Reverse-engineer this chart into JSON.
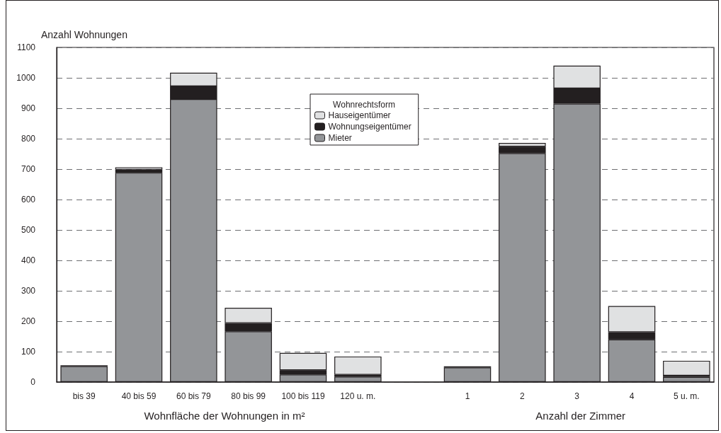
{
  "chart_data": {
    "type": "bar",
    "stacked": true,
    "ylabel": "Anzahl Wohnungen",
    "legend_title": "Wohnrechtsform",
    "legend": "top",
    "grid": "y",
    "categories": [
      "bis 39",
      "40 bis 59",
      "60 bis 79",
      "80 bis 99",
      "100 bis 119",
      "120 u. m.",
      null,
      "1",
      "2",
      "3",
      "4",
      "5 u. m."
    ],
    "series": [
      {
        "name": "Mieter",
        "color": "#939598",
        "values": [
          52,
          688,
          930,
          167,
          25,
          18,
          null,
          48,
          752,
          915,
          140,
          17
        ]
      },
      {
        "name": "Wohnungseigentümer",
        "color": "#231f20",
        "values": [
          3,
          10,
          42,
          27,
          14,
          6,
          null,
          4,
          22,
          50,
          24,
          4
        ]
      },
      {
        "name": "Hauseigentümer",
        "color": "#e0e1e2",
        "values": [
          0,
          8,
          45,
          50,
          57,
          60,
          null,
          0,
          12,
          75,
          86,
          49
        ]
      }
    ],
    "ylim": [
      0,
      1100
    ],
    "yticks": [
      0,
      100,
      200,
      300,
      400,
      500,
      600,
      700,
      800,
      900,
      1000,
      1100
    ],
    "annotations": [
      "Wohnfläche der Wohnungen in m²",
      "Anzahl der Zimmer"
    ]
  }
}
